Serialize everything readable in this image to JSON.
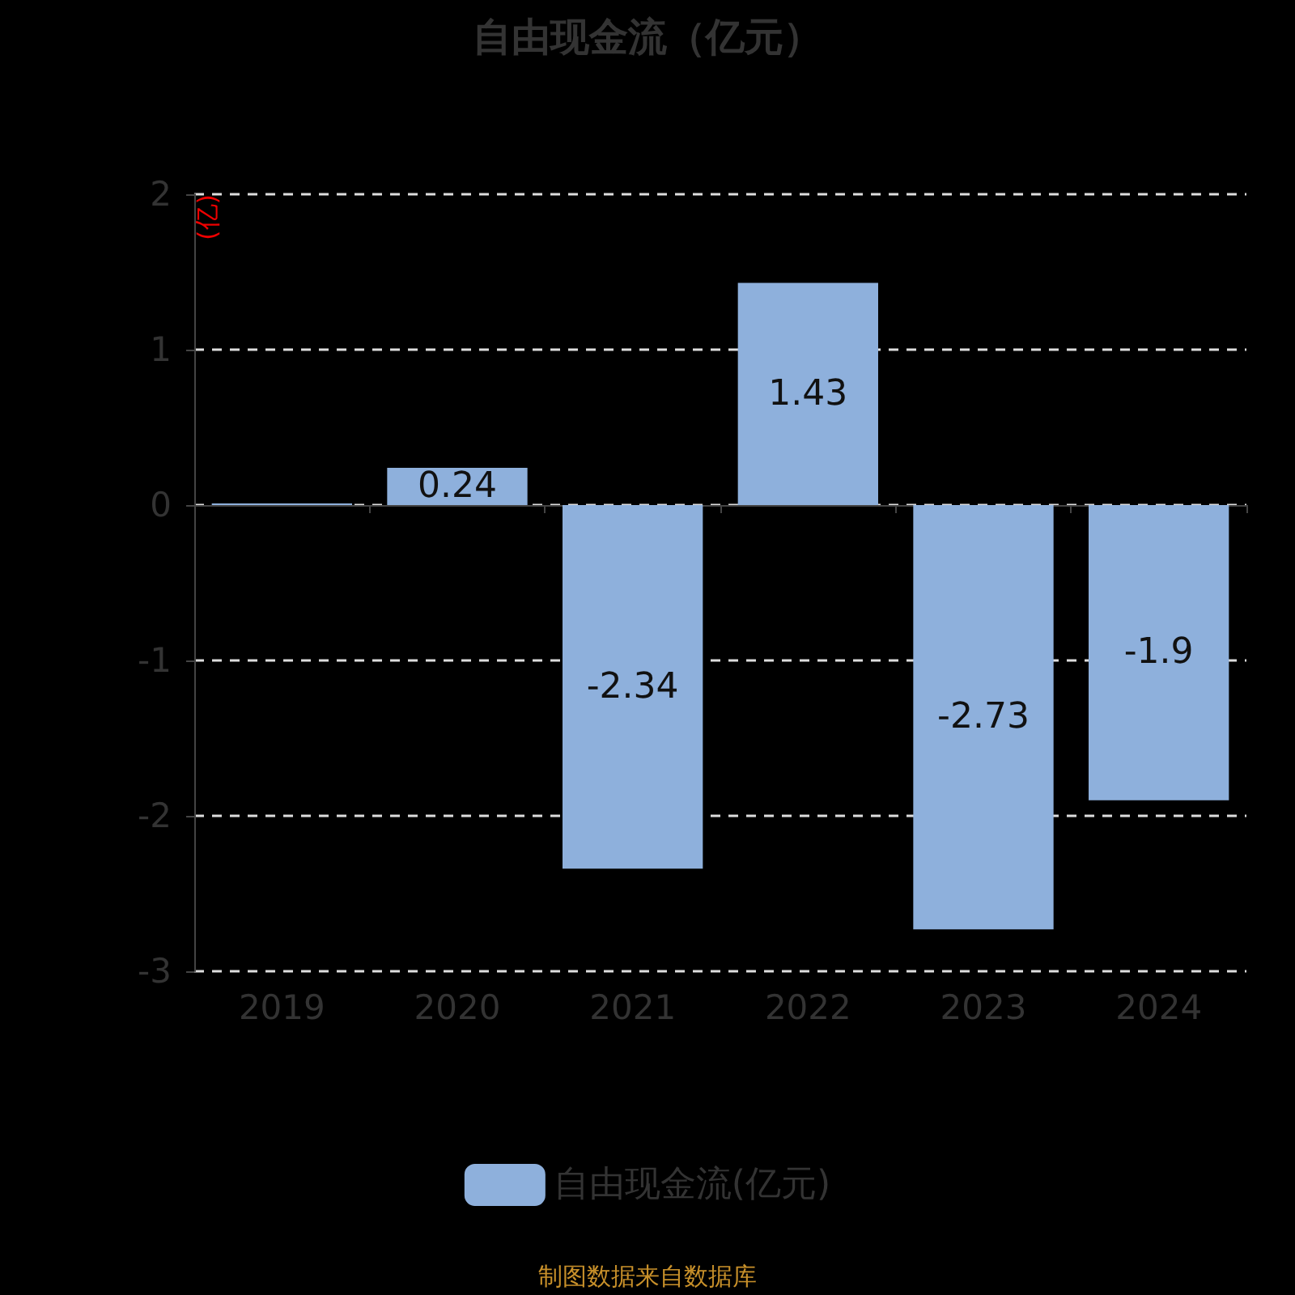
{
  "chart_data": {
    "type": "bar",
    "title": "自由现金流（亿元）",
    "ylabel": "(亿)",
    "categories": [
      "2019",
      "2020",
      "2021",
      "2022",
      "2023",
      "2024"
    ],
    "series": [
      {
        "name": "自由现金流(亿元)",
        "color": "#8eb0dc",
        "values": [
          0.01,
          0.24,
          -2.34,
          1.43,
          -2.73,
          -1.9
        ],
        "value_labels": [
          null,
          "0.24",
          "-2.34",
          "1.43",
          "-2.73",
          "-1.9"
        ]
      }
    ],
    "ylim": [
      -3,
      2
    ],
    "yticks": [
      -3,
      -2,
      -1,
      0,
      1,
      2
    ],
    "grid": "y",
    "legend": "bottom",
    "annotations": [
      "制图数据来自数据库"
    ]
  }
}
